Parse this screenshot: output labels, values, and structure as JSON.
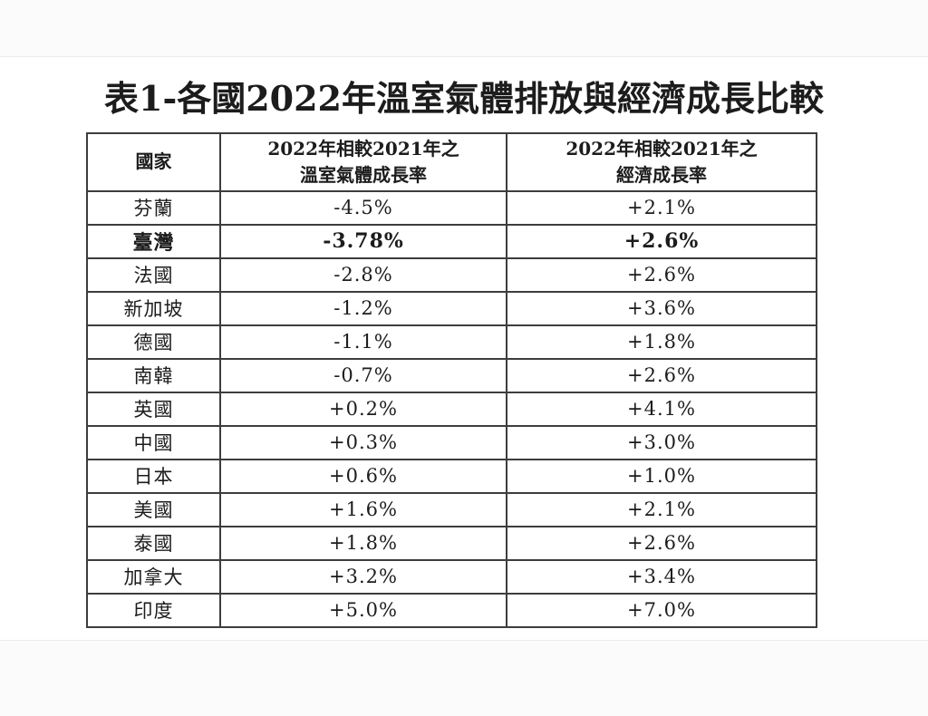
{
  "page": {
    "title": "表1-各國2022年溫室氣體排放與經濟成長比較"
  },
  "table": {
    "header": {
      "country": "國家",
      "ghg_line1": "2022年相較2021年之",
      "ghg_line2": "溫室氣體成長率",
      "econ_line1": "2022年相較2021年之",
      "econ_line2": "經濟成長率"
    },
    "rows": [
      {
        "country": "芬蘭",
        "ghg": "-4.5%",
        "econ": "+2.1%",
        "emphasis": false
      },
      {
        "country": "臺灣",
        "ghg": "-3.78%",
        "econ": "+2.6%",
        "emphasis": true
      },
      {
        "country": "法國",
        "ghg": "-2.8%",
        "econ": "+2.6%",
        "emphasis": false
      },
      {
        "country": "新加坡",
        "ghg": "-1.2%",
        "econ": "+3.6%",
        "emphasis": false
      },
      {
        "country": "德國",
        "ghg": "-1.1%",
        "econ": "+1.8%",
        "emphasis": false
      },
      {
        "country": "南韓",
        "ghg": "-0.7%",
        "econ": "+2.6%",
        "emphasis": false
      },
      {
        "country": "英國",
        "ghg": "+0.2%",
        "econ": "+4.1%",
        "emphasis": false
      },
      {
        "country": "中國",
        "ghg": "+0.3%",
        "econ": "+3.0%",
        "emphasis": false
      },
      {
        "country": "日本",
        "ghg": "+0.6%",
        "econ": "+1.0%",
        "emphasis": false
      },
      {
        "country": "美國",
        "ghg": "+1.6%",
        "econ": "+2.1%",
        "emphasis": false
      },
      {
        "country": "泰國",
        "ghg": "+1.8%",
        "econ": "+2.6%",
        "emphasis": false
      },
      {
        "country": "加拿大",
        "ghg": "+3.2%",
        "econ": "+3.4%",
        "emphasis": false
      },
      {
        "country": "印度",
        "ghg": "+5.0%",
        "econ": "+7.0%",
        "emphasis": false
      }
    ]
  },
  "colors": {
    "text": "#1c1c1c",
    "table_border": "#3d3d3d",
    "page_background": "#ffffff",
    "margin_band_background": "#fbfbfb"
  }
}
